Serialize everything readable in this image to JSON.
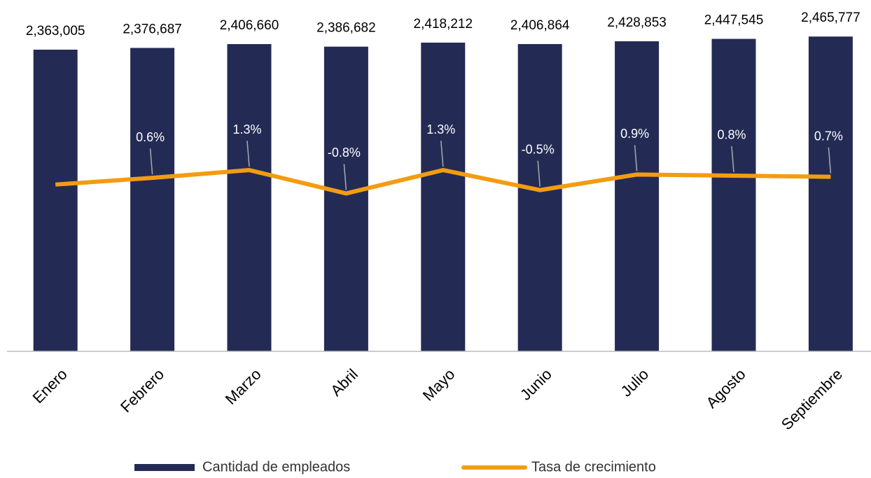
{
  "chart_data": {
    "type": "bar-line",
    "categories": [
      "Enero",
      "Febrero",
      "Marzo",
      "Abril",
      "Mayo",
      "Junio",
      "Julio",
      "Agosto",
      "Septiembre"
    ],
    "series": [
      {
        "name": "Cantidad de empleados",
        "type": "bar",
        "color": "#232b55",
        "values": [
          2363005,
          2376687,
          2406660,
          2386682,
          2418212,
          2406864,
          2428853,
          2447545,
          2465777
        ],
        "value_labels": [
          "2,363,005",
          "2,376,687",
          "2,406,660",
          "2,386,682",
          "2,418,212",
          "2,406,864",
          "2,428,853",
          "2,447,545",
          "2,465,777"
        ]
      },
      {
        "name": "Tasa de crecimiento",
        "type": "line",
        "axis": "y2",
        "color": "#f39c12",
        "values": [
          0,
          0.6,
          1.3,
          -0.8,
          1.3,
          -0.5,
          0.9,
          0.8,
          0.7
        ],
        "value_labels": [
          null,
          "0.6%",
          "1.3%",
          "-0.8%",
          "1.3%",
          "-0.5%",
          "0.9%",
          "0.8%",
          "0.7%"
        ]
      }
    ],
    "ylim": [
      0,
      2700000
    ],
    "y2lim": [
      -15,
      16
    ],
    "legend": "bottom"
  }
}
